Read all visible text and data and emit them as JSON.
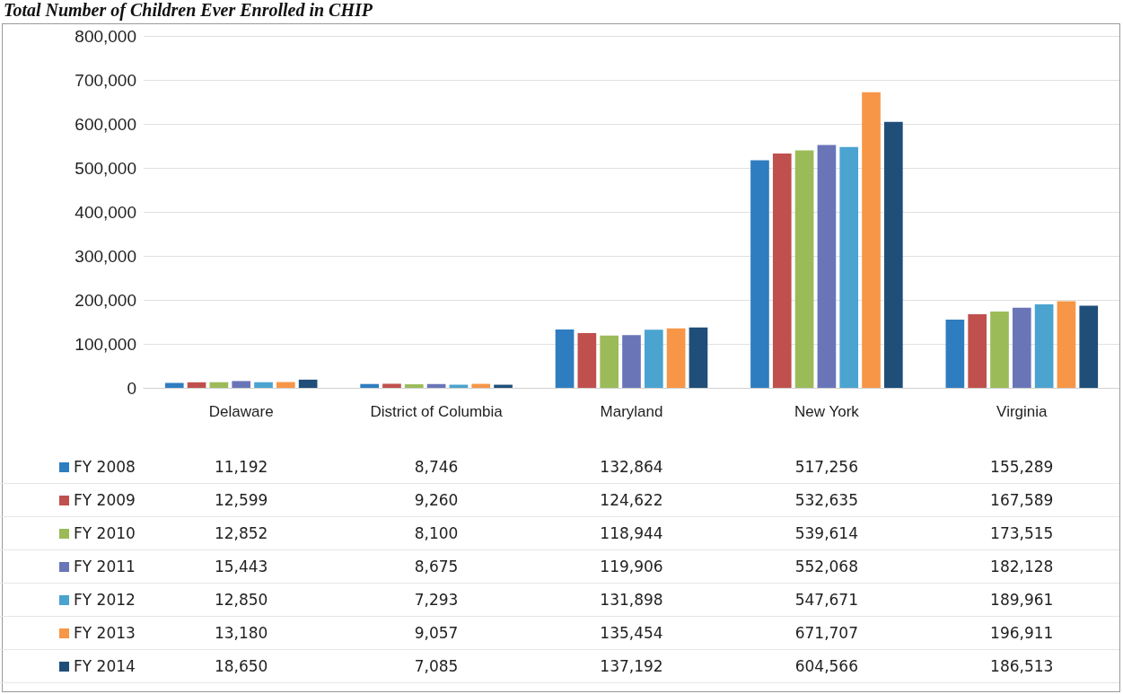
{
  "chart_data": {
    "type": "bar",
    "title": "Total Number of Children Ever Enrolled in CHIP",
    "categories": [
      "Delaware",
      "District of Columbia",
      "Maryland",
      "New York",
      "Virginia"
    ],
    "series": [
      {
        "name": "FY 2008",
        "color": "#2e7dc0",
        "values": [
          11192,
          8746,
          132864,
          517256,
          155289
        ],
        "value_labels": [
          "11,192",
          "8,746",
          "132,864",
          "517,256",
          "155,289"
        ]
      },
      {
        "name": "FY 2009",
        "color": "#c0504d",
        "values": [
          12599,
          9260,
          124622,
          532635,
          167589
        ],
        "value_labels": [
          "12,599",
          "9,260",
          "124,622",
          "532,635",
          "167,589"
        ]
      },
      {
        "name": "FY 2010",
        "color": "#9bbb59",
        "values": [
          12852,
          8100,
          118944,
          539614,
          173515
        ],
        "value_labels": [
          "12,852",
          "8,100",
          "118,944",
          "539,614",
          "173,515"
        ]
      },
      {
        "name": "FY 2011",
        "color": "#6a75b8",
        "values": [
          15443,
          8675,
          119906,
          552068,
          182128
        ],
        "value_labels": [
          "15,443",
          "8,675",
          "119,906",
          "552,068",
          "182,128"
        ]
      },
      {
        "name": "FY 2012",
        "color": "#4ba3d0",
        "values": [
          12850,
          7293,
          131898,
          547671,
          189961
        ],
        "value_labels": [
          "12,850",
          "7,293",
          "131,898",
          "547,671",
          "189,961"
        ]
      },
      {
        "name": "FY 2013",
        "color": "#f79646",
        "values": [
          13180,
          9057,
          135454,
          671707,
          196911
        ],
        "value_labels": [
          "13,180",
          "9,057",
          "135,454",
          "671,707",
          "196,911"
        ]
      },
      {
        "name": "FY 2014",
        "color": "#1f4e79",
        "values": [
          18650,
          7085,
          137192,
          604566,
          186513
        ],
        "value_labels": [
          "18,650",
          "7,085",
          "137,192",
          "604,566",
          "186,513"
        ]
      }
    ],
    "ylim": [
      0,
      800000
    ],
    "yticks": [
      {
        "value": 0,
        "label": "0"
      },
      {
        "value": 100000,
        "label": "100,000"
      },
      {
        "value": 200000,
        "label": "200,000"
      },
      {
        "value": 300000,
        "label": "300,000"
      },
      {
        "value": 400000,
        "label": "400,000"
      },
      {
        "value": 500000,
        "label": "500,000"
      },
      {
        "value": 600000,
        "label": "600,000"
      },
      {
        "value": 700000,
        "label": "700,000"
      },
      {
        "value": 800000,
        "label": "800,000"
      }
    ],
    "grid": "y",
    "legend": "bottom"
  }
}
